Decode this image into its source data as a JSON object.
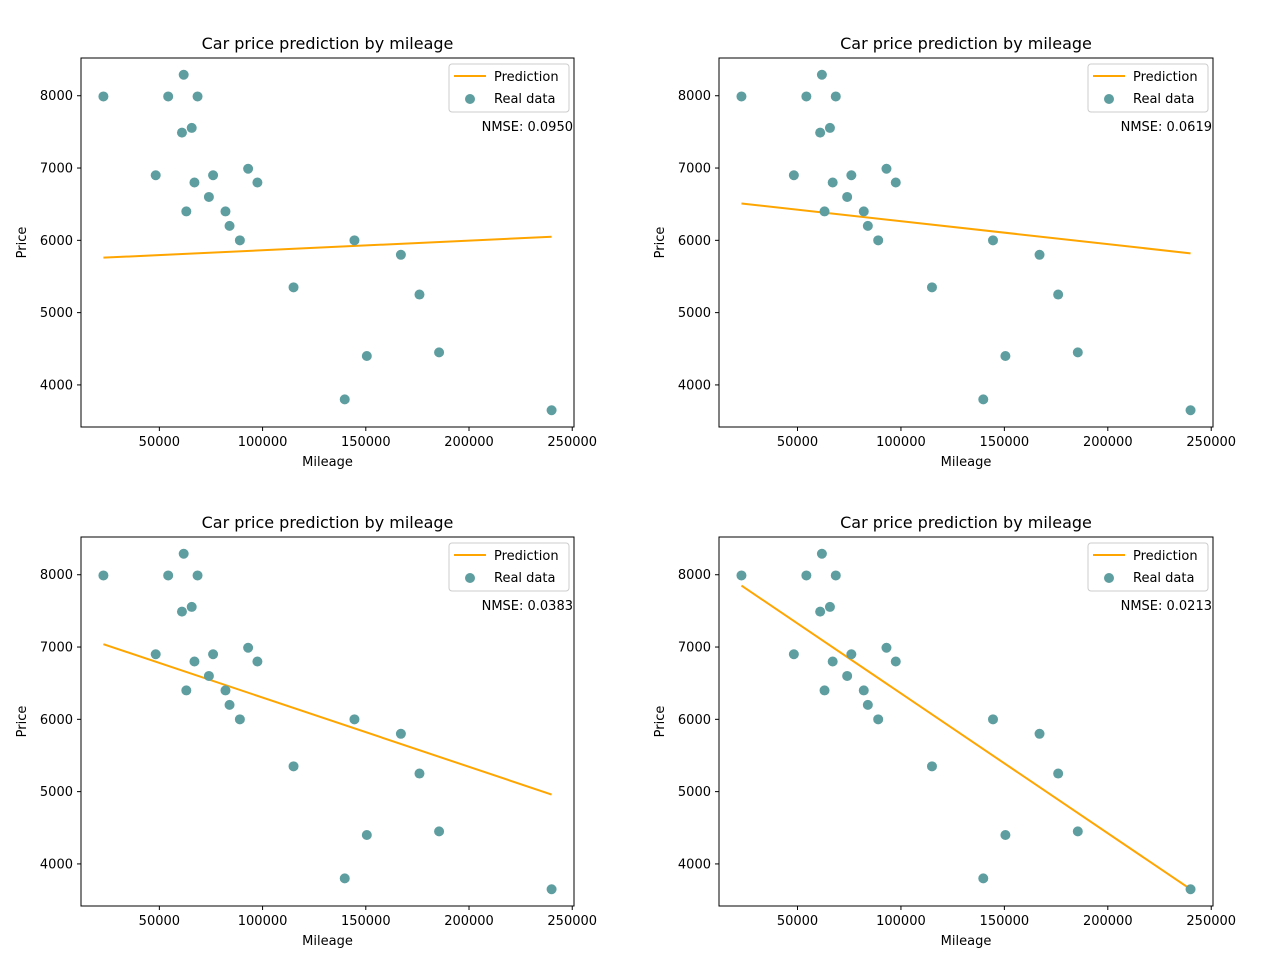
{
  "chart_data": [
    {
      "type": "scatter",
      "title": "Car price prediction by mileage",
      "xlabel": "Mileage",
      "ylabel": "Price",
      "xticks": [
        "50000",
        "100000",
        "150000",
        "200000",
        "250000"
      ],
      "yticks": [
        "4000",
        "5000",
        "6000",
        "7000",
        "8000"
      ],
      "legend": {
        "position": "top-right",
        "entries": [
          "Prediction",
          "Real data"
        ]
      },
      "annotation": "NMSE: 0.0950",
      "series": [
        {
          "name": "Prediction",
          "type": "line",
          "color": "#ffa500",
          "x": [
            22899,
            240000
          ],
          "y": [
            5760,
            6050
          ]
        },
        {
          "name": "Real data",
          "type": "scatter",
          "color": "#5f9ea0",
          "x": [
            22899,
            48235,
            54276,
            60949,
            61789,
            63060,
            65674,
            67000,
            68500,
            74000,
            76025,
            82029,
            84000,
            89000,
            93000,
            97500,
            115000,
            139800,
            144500,
            150500,
            167000,
            176000,
            185500,
            240000
          ],
          "y": [
            7990,
            6900,
            7990,
            7490,
            8290,
            6400,
            7555,
            6800,
            7990,
            6600,
            6900,
            6400,
            6200,
            6000,
            6990,
            6800,
            5350,
            3800,
            6000,
            4400,
            5800,
            5250,
            4450,
            3650
          ]
        }
      ]
    },
    {
      "type": "scatter",
      "title": "Car price prediction by mileage",
      "xlabel": "Mileage",
      "ylabel": "Price",
      "xticks": [
        "50000",
        "100000",
        "150000",
        "200000",
        "250000"
      ],
      "yticks": [
        "4000",
        "5000",
        "6000",
        "7000",
        "8000"
      ],
      "legend": {
        "position": "top-right",
        "entries": [
          "Prediction",
          "Real data"
        ]
      },
      "annotation": "NMSE: 0.0619",
      "series": [
        {
          "name": "Prediction",
          "type": "line",
          "color": "#ffa500",
          "x": [
            22899,
            240000
          ],
          "y": [
            6510,
            5820
          ]
        },
        {
          "name": "Real data",
          "type": "scatter",
          "color": "#5f9ea0",
          "x": [
            22899,
            48235,
            54276,
            60949,
            61789,
            63060,
            65674,
            67000,
            68500,
            74000,
            76025,
            82029,
            84000,
            89000,
            93000,
            97500,
            115000,
            139800,
            144500,
            150500,
            167000,
            176000,
            185500,
            240000
          ],
          "y": [
            7990,
            6900,
            7990,
            7490,
            8290,
            6400,
            7555,
            6800,
            7990,
            6600,
            6900,
            6400,
            6200,
            6000,
            6990,
            6800,
            5350,
            3800,
            6000,
            4400,
            5800,
            5250,
            4450,
            3650
          ]
        }
      ]
    },
    {
      "type": "scatter",
      "title": "Car price prediction by mileage",
      "xlabel": "Mileage",
      "ylabel": "Price",
      "xticks": [
        "50000",
        "100000",
        "150000",
        "200000",
        "250000"
      ],
      "yticks": [
        "4000",
        "5000",
        "6000",
        "7000",
        "8000"
      ],
      "legend": {
        "position": "top-right",
        "entries": [
          "Prediction",
          "Real data"
        ]
      },
      "annotation": "NMSE: 0.0383",
      "series": [
        {
          "name": "Prediction",
          "type": "line",
          "color": "#ffa500",
          "x": [
            22899,
            240000
          ],
          "y": [
            7040,
            4960
          ]
        },
        {
          "name": "Real data",
          "type": "scatter",
          "color": "#5f9ea0",
          "x": [
            22899,
            48235,
            54276,
            60949,
            61789,
            63060,
            65674,
            67000,
            68500,
            74000,
            76025,
            82029,
            84000,
            89000,
            93000,
            97500,
            115000,
            139800,
            144500,
            150500,
            167000,
            176000,
            185500,
            240000
          ],
          "y": [
            7990,
            6900,
            7990,
            7490,
            8290,
            6400,
            7555,
            6800,
            7990,
            6600,
            6900,
            6400,
            6200,
            6000,
            6990,
            6800,
            5350,
            3800,
            6000,
            4400,
            5800,
            5250,
            4450,
            3650
          ]
        }
      ]
    },
    {
      "type": "scatter",
      "title": "Car price prediction by mileage",
      "xlabel": "Mileage",
      "ylabel": "Price",
      "xticks": [
        "50000",
        "100000",
        "150000",
        "200000",
        "250000"
      ],
      "yticks": [
        "4000",
        "5000",
        "6000",
        "7000",
        "8000"
      ],
      "legend": {
        "position": "top-right",
        "entries": [
          "Prediction",
          "Real data"
        ]
      },
      "annotation": "NMSE: 0.0213",
      "series": [
        {
          "name": "Prediction",
          "type": "line",
          "color": "#ffa500",
          "x": [
            22899,
            240000
          ],
          "y": [
            7850,
            3650
          ]
        },
        {
          "name": "Real data",
          "type": "scatter",
          "color": "#5f9ea0",
          "x": [
            22899,
            48235,
            54276,
            60949,
            61789,
            63060,
            65674,
            67000,
            68500,
            74000,
            76025,
            82029,
            84000,
            89000,
            93000,
            97500,
            115000,
            139800,
            144500,
            150500,
            167000,
            176000,
            185500,
            240000
          ],
          "y": [
            7990,
            6900,
            7990,
            7490,
            8290,
            6400,
            7555,
            6800,
            7990,
            6600,
            6900,
            6400,
            6200,
            6000,
            6990,
            6800,
            5350,
            3800,
            6000,
            4400,
            5800,
            5250,
            4450,
            3650
          ]
        }
      ]
    }
  ]
}
